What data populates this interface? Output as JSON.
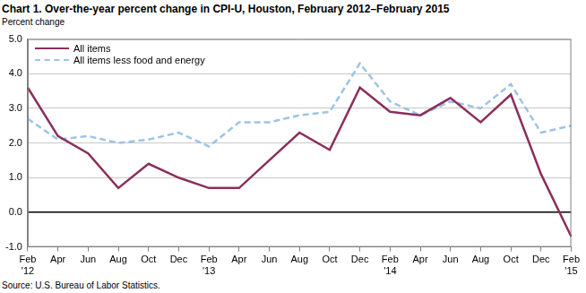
{
  "chart_data": {
    "type": "line",
    "title": "Chart 1. Over-the-year percent change in CPI-U, Houston,  February 2012–February 2015",
    "y_label": "Percent change",
    "source": "Source: U.S. Bureau of Labor Statistics.",
    "categories": [
      "Feb '12",
      "Apr",
      "Jun",
      "Aug",
      "Oct",
      "Dec",
      "Feb '13",
      "Apr",
      "Jun",
      "Aug",
      "Oct",
      "Dec",
      "Feb '14",
      "Apr",
      "Jun",
      "Aug",
      "Oct",
      "Dec",
      "Feb '15"
    ],
    "series": [
      {
        "name": "All items",
        "color": "#8b2f5c",
        "line_style": "solid",
        "values": [
          3.6,
          2.2,
          1.7,
          0.7,
          1.4,
          1.0,
          0.7,
          0.7,
          1.5,
          2.3,
          1.8,
          3.6,
          2.9,
          2.8,
          3.3,
          2.6,
          3.4,
          1.1,
          -0.7
        ]
      },
      {
        "name": "All items less food and energy",
        "color": "#9dc3e6",
        "line_style": "dashed",
        "values": [
          2.7,
          2.1,
          2.2,
          2.0,
          2.1,
          2.3,
          1.9,
          2.6,
          2.6,
          2.8,
          2.9,
          4.3,
          3.2,
          2.8,
          3.2,
          3.0,
          3.7,
          2.3,
          2.5
        ]
      }
    ],
    "ylim": [
      -1,
      5
    ],
    "yticks": [
      {
        "value": -1,
        "label": "-1.0"
      },
      {
        "value": 0,
        "label": "0.0"
      },
      {
        "value": 1,
        "label": "1.0"
      },
      {
        "value": 2,
        "label": "2.0"
      },
      {
        "value": 3,
        "label": "3.0"
      },
      {
        "value": 4,
        "label": "4.0"
      },
      {
        "value": 5,
        "label": "5.0"
      }
    ],
    "grid": true,
    "legend": "top-left"
  }
}
